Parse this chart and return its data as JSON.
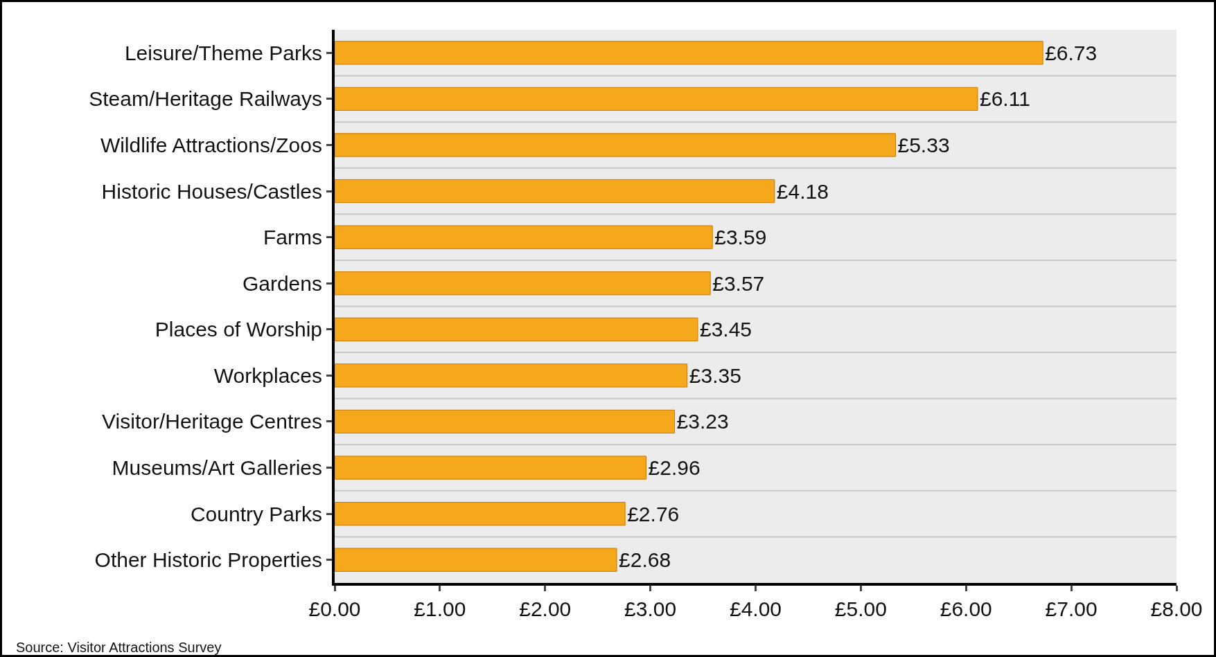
{
  "chart_data": {
    "type": "bar",
    "orientation": "horizontal",
    "categories": [
      "Leisure/Theme Parks",
      "Steam/Heritage Railways",
      "Wildlife Attractions/Zoos",
      "Historic Houses/Castles",
      "Farms",
      "Gardens",
      "Places of Worship",
      "Workplaces",
      "Visitor/Heritage Centres",
      "Museums/Art Galleries",
      "Country Parks",
      "Other Historic Properties"
    ],
    "values": [
      6.73,
      6.11,
      5.33,
      4.18,
      3.59,
      3.57,
      3.45,
      3.35,
      3.23,
      2.96,
      2.76,
      2.68
    ],
    "value_labels": [
      "£6.73",
      "£6.11",
      "£5.33",
      "£4.18",
      "£3.59",
      "£3.57",
      "£3.45",
      "£3.35",
      "£3.23",
      "£2.96",
      "£2.76",
      "£2.68"
    ],
    "color": "#f5a81c",
    "xlim": [
      0,
      8
    ],
    "xticks": [
      {
        "value": 0,
        "label": "£0.00"
      },
      {
        "value": 1,
        "label": "£1.00"
      },
      {
        "value": 2,
        "label": "£2.00"
      },
      {
        "value": 3,
        "label": "£3.00"
      },
      {
        "value": 4,
        "label": "£4.00"
      },
      {
        "value": 5,
        "label": "£5.00"
      },
      {
        "value": 6,
        "label": "£6.00"
      },
      {
        "value": 7,
        "label": "£7.00"
      },
      {
        "value": 8,
        "label": "£8.00"
      }
    ],
    "grid": false,
    "legend": false,
    "annotations": [
      "Source: Visitor Attractions Survey"
    ]
  }
}
